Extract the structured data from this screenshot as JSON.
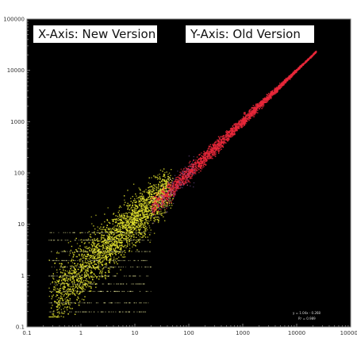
{
  "chart_data": {
    "type": "scatter",
    "scale": "log-log",
    "xlim": [
      0.1,
      100000
    ],
    "ylim": [
      0.1,
      100000
    ],
    "x_tick_labels": [
      "0.1",
      "1",
      "10",
      "100",
      "1000",
      "10000",
      "100000"
    ],
    "y_tick_labels": [
      "0.1",
      "1",
      "10",
      "100",
      "1000",
      "10000",
      "100000"
    ],
    "background": "#000000",
    "grid": false,
    "annotations": {
      "x_axis_note": "X-Axis: New Version",
      "y_axis_note": "Y-Axis: Old Version"
    },
    "series": [
      {
        "color": "#e8e830",
        "description_points": [
          [
            0.3,
            0.2
          ],
          [
            1,
            1
          ],
          [
            3,
            5
          ],
          [
            10,
            10
          ],
          [
            30,
            30
          ],
          [
            5,
            2
          ],
          [
            2,
            20
          ],
          [
            20,
            60
          ]
        ]
      },
      {
        "color": "#e8283a",
        "description_points": [
          [
            30,
            40
          ],
          [
            100,
            110
          ],
          [
            300,
            320
          ],
          [
            1000,
            1050
          ],
          [
            3000,
            3100
          ],
          [
            10000,
            10200
          ],
          [
            20000,
            20000
          ]
        ]
      }
    ],
    "fit_text": [
      "y = 1.04x - 0.268",
      "R² = 0.989"
    ]
  },
  "colors": {
    "plot_bg": "#000000",
    "axis": "#7a7a7a",
    "yellow": "#e8e830",
    "red": "#e8283a"
  }
}
